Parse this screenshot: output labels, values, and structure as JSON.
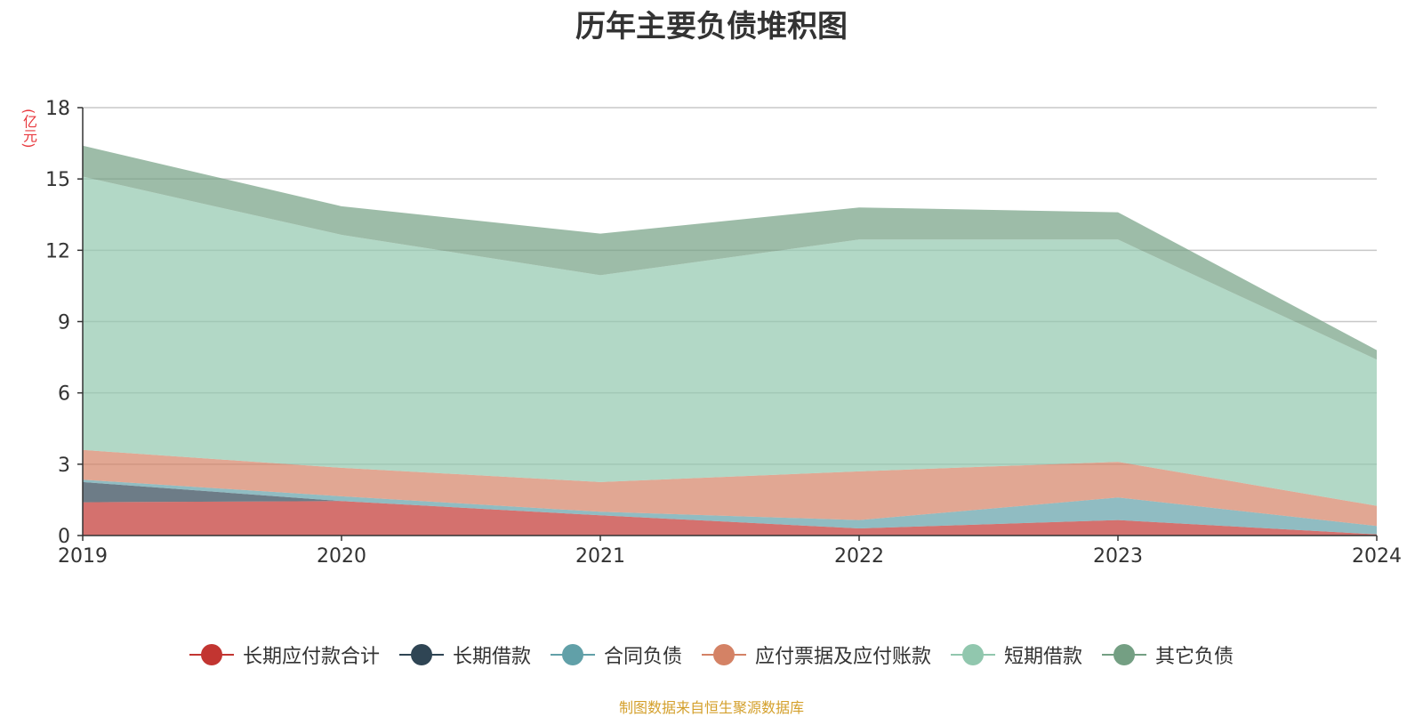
{
  "chart_data": {
    "type": "area",
    "stacked": true,
    "title": "历年主要负债堆积图",
    "y_unit": "(亿元)",
    "categories": [
      "2019",
      "2020",
      "2021",
      "2022",
      "2023",
      "2024"
    ],
    "ylim": [
      0,
      18
    ],
    "yticks": [
      0,
      3,
      6,
      9,
      12,
      15,
      18
    ],
    "grid": true,
    "legend_position": "bottom",
    "series": [
      {
        "name": "长期应付款合计",
        "color": "#c23531",
        "values": [
          1.4,
          1.45,
          0.85,
          0.3,
          0.65,
          0.05
        ]
      },
      {
        "name": "长期借款",
        "color": "#2f4554",
        "values": [
          0.85,
          0.0,
          0.0,
          0.0,
          0.0,
          0.0
        ]
      },
      {
        "name": "合同负债",
        "color": "#61a0a8",
        "values": [
          0.1,
          0.2,
          0.15,
          0.35,
          0.95,
          0.35
        ]
      },
      {
        "name": "应付票据及应付账款",
        "color": "#d48265",
        "values": [
          1.25,
          1.2,
          1.25,
          2.05,
          1.5,
          0.85
        ]
      },
      {
        "name": "短期借款",
        "color": "#91c7ae",
        "values": [
          11.5,
          9.8,
          8.7,
          9.75,
          9.35,
          6.15
        ]
      },
      {
        "name": "其它负债",
        "color": "#749f83",
        "values": [
          1.3,
          1.2,
          1.75,
          1.35,
          1.15,
          0.4
        ]
      }
    ]
  },
  "source_note": "制图数据来自恒生聚源数据库"
}
